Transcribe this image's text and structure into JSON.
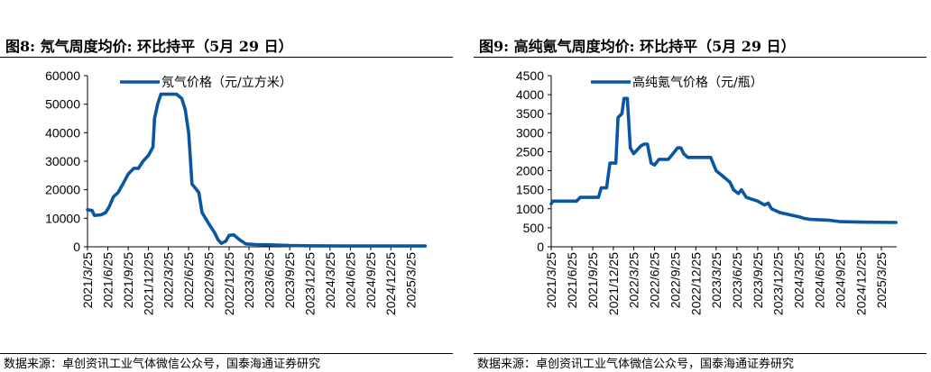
{
  "panels": [
    {
      "title": "图8:  氖气周度均价:  环比持平（5月 29 日）",
      "source": "数据来源：卓创资讯工业气体微信公众号，国泰海通证券研究"
    },
    {
      "title": "图9:  高纯氪气周度均价:  环比持平（5月 29 日）",
      "source": "数据来源：卓创资讯工业气体微信公众号，国泰海通证券研究"
    }
  ],
  "colors": {
    "line": "#0a56a3",
    "axis": "#000000"
  },
  "chart_data": [
    {
      "type": "line",
      "series": [
        {
          "name": "氖气价格（元/立方米）"
        }
      ],
      "x_ticks": [
        "2021/3/25",
        "2021/6/25",
        "2021/9/25",
        "2021/12/25",
        "2022/3/25",
        "2022/6/25",
        "2022/9/25",
        "2022/12/25",
        "2023/3/25",
        "2023/6/25",
        "2023/9/25",
        "2023/12/25",
        "2024/3/25",
        "2024/6/25",
        "2024/9/25",
        "2024/12/25",
        "2025/3/25"
      ],
      "y_ticks": [
        "0",
        "10000",
        "20000",
        "30000",
        "40000",
        "50000",
        "60000"
      ],
      "ylim": [
        0,
        60000
      ],
      "xlim": [
        "2021/3/25",
        "2025/6/1"
      ],
      "legend_position": "top",
      "points": [
        [
          "2021/3/25",
          13000
        ],
        [
          "2021/4/15",
          12700
        ],
        [
          "2021/4/25",
          11000
        ],
        [
          "2021/5/25",
          11200
        ],
        [
          "2021/6/15",
          12000
        ],
        [
          "2021/7/1",
          14000
        ],
        [
          "2021/7/20",
          17500
        ],
        [
          "2021/8/10",
          19000
        ],
        [
          "2021/9/1",
          22000
        ],
        [
          "2021/9/25",
          25500
        ],
        [
          "2021/10/20",
          27500
        ],
        [
          "2021/11/10",
          27500
        ],
        [
          "2021/12/1",
          30000
        ],
        [
          "2021/12/25",
          32000
        ],
        [
          "2022/1/15",
          35000
        ],
        [
          "2022/1/22",
          45000
        ],
        [
          "2022/2/5",
          50000
        ],
        [
          "2022/2/20",
          53500
        ],
        [
          "2022/4/1",
          53500
        ],
        [
          "2022/5/1",
          53500
        ],
        [
          "2022/5/25",
          52000
        ],
        [
          "2022/6/10",
          48000
        ],
        [
          "2022/6/25",
          40000
        ],
        [
          "2022/7/1",
          33000
        ],
        [
          "2022/7/10",
          22000
        ],
        [
          "2022/8/10",
          19000
        ],
        [
          "2022/8/25",
          12000
        ],
        [
          "2022/9/25",
          8000
        ],
        [
          "2022/10/20",
          5000
        ],
        [
          "2022/11/5",
          2500
        ],
        [
          "2022/11/20",
          1200
        ],
        [
          "2022/12/10",
          2000
        ],
        [
          "2022/12/25",
          4000
        ],
        [
          "2023/1/15",
          4200
        ],
        [
          "2023/2/10",
          2500
        ],
        [
          "2023/3/10",
          1000
        ],
        [
          "2023/4/25",
          800
        ],
        [
          "2023/6/25",
          700
        ],
        [
          "2023/9/25",
          450
        ],
        [
          "2024/1/1",
          350
        ],
        [
          "2024/6/25",
          300
        ],
        [
          "2025/5/29",
          300
        ]
      ]
    },
    {
      "type": "line",
      "series": [
        {
          "name": "高纯氪气价格（元/瓶）"
        }
      ],
      "x_ticks": [
        "2021/3/25",
        "2021/6/25",
        "2021/9/25",
        "2021/12/25",
        "2022/3/25",
        "2022/6/25",
        "2022/9/25",
        "2022/12/25",
        "2023/3/25",
        "2023/6/25",
        "2023/9/25",
        "2023/12/25",
        "2024/3/25",
        "2024/6/25",
        "2024/9/25",
        "2024/12/25",
        "2025/3/25"
      ],
      "y_ticks": [
        "0",
        "500",
        "1000",
        "1500",
        "2000",
        "2500",
        "3000",
        "3500",
        "4000",
        "4500"
      ],
      "ylim": [
        0,
        4500
      ],
      "xlim": [
        "2021/3/25",
        "2025/6/1"
      ],
      "legend_position": "top",
      "points": [
        [
          "2021/3/25",
          1130
        ],
        [
          "2021/4/1",
          1200
        ],
        [
          "2021/7/15",
          1200
        ],
        [
          "2021/8/1",
          1300
        ],
        [
          "2021/10/20",
          1300
        ],
        [
          "2021/11/1",
          1550
        ],
        [
          "2021/11/25",
          1550
        ],
        [
          "2021/12/10",
          2200
        ],
        [
          "2022/1/5",
          2200
        ],
        [
          "2022/1/15",
          3400
        ],
        [
          "2022/2/1",
          3500
        ],
        [
          "2022/2/10",
          3900
        ],
        [
          "2022/2/25",
          3900
        ],
        [
          "2022/3/10",
          2600
        ],
        [
          "2022/3/25",
          2450
        ],
        [
          "2022/4/25",
          2650
        ],
        [
          "2022/5/10",
          2700
        ],
        [
          "2022/5/25",
          2700
        ],
        [
          "2022/6/10",
          2200
        ],
        [
          "2022/6/25",
          2150
        ],
        [
          "2022/7/15",
          2300
        ],
        [
          "2022/8/25",
          2300
        ],
        [
          "2022/9/15",
          2450
        ],
        [
          "2022/10/5",
          2600
        ],
        [
          "2022/10/20",
          2600
        ],
        [
          "2022/11/1",
          2450
        ],
        [
          "2022/11/20",
          2350
        ],
        [
          "2023/3/1",
          2350
        ],
        [
          "2023/3/25",
          2000
        ],
        [
          "2023/4/15",
          1900
        ],
        [
          "2023/5/25",
          1700
        ],
        [
          "2023/6/10",
          1500
        ],
        [
          "2023/7/1",
          1400
        ],
        [
          "2023/7/15",
          1500
        ],
        [
          "2023/8/5",
          1300
        ],
        [
          "2023/9/25",
          1200
        ],
        [
          "2023/10/25",
          1100
        ],
        [
          "2023/11/10",
          1150
        ],
        [
          "2023/11/25",
          1000
        ],
        [
          "2024/1/1",
          900
        ],
        [
          "2024/3/1",
          820
        ],
        [
          "2024/3/25",
          790
        ],
        [
          "2024/4/15",
          750
        ],
        [
          "2024/5/15",
          720
        ],
        [
          "2024/8/1",
          700
        ],
        [
          "2024/9/25",
          660
        ],
        [
          "2024/12/25",
          650
        ],
        [
          "2025/5/29",
          640
        ]
      ]
    }
  ]
}
